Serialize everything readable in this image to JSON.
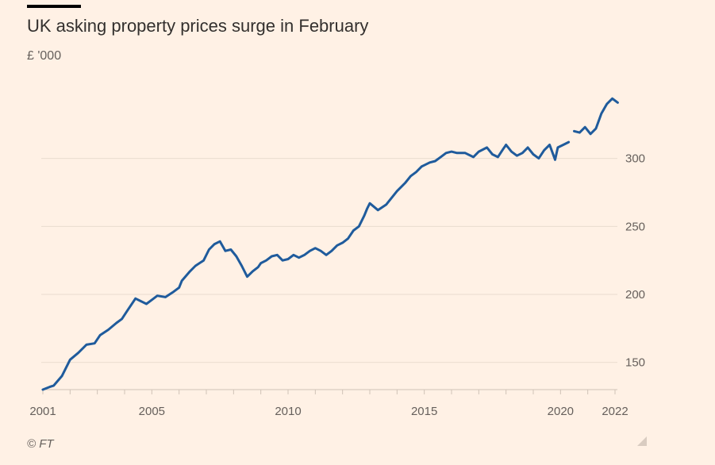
{
  "title": "UK asking property prices surge in February",
  "subtitle": "£ '000",
  "source": "© FT",
  "chart_data": {
    "type": "line",
    "title": "UK asking property prices surge in February",
    "ylabel": "£ '000",
    "xlabel": "",
    "x_ticks": [
      "2001",
      "2005",
      "2010",
      "2015",
      "2020",
      "2022"
    ],
    "y_ticks": [
      150,
      200,
      250,
      300
    ],
    "xlim": [
      2001,
      2022.3
    ],
    "ylim": [
      130,
      350
    ],
    "grid": "horizontal",
    "colors": {
      "line": "#1f5b9c",
      "grid": "#eadccf",
      "background": "#fff1e5"
    },
    "series": [
      {
        "segments": [
          {
            "x": [
              2001.0,
              2001.25,
              2001.4,
              2001.7,
              2002.0,
              2002.3,
              2002.6,
              2002.9,
              2003.1,
              2003.4,
              2003.7,
              2003.9,
              2004.1,
              2004.4,
              2004.6,
              2004.8,
              2005.0,
              2005.2,
              2005.5,
              2005.8,
              2006.0,
              2006.1,
              2006.4,
              2006.6,
              2006.9,
              2007.1,
              2007.3,
              2007.5,
              2007.7,
              2007.9,
              2008.1,
              2008.3,
              2008.5,
              2008.7,
              2008.9,
              2009.0,
              2009.2,
              2009.4,
              2009.6,
              2009.8,
              2010.0,
              2010.2,
              2010.4,
              2010.6,
              2010.8,
              2011.0,
              2011.2,
              2011.4,
              2011.6,
              2011.8,
              2012.0,
              2012.2,
              2012.4,
              2012.6,
              2012.8,
              2012.9,
              2013.0,
              2013.3,
              2013.6,
              2013.8,
              2014.0,
              2014.3,
              2014.5,
              2014.7,
              2014.9,
              2015.0,
              2015.2,
              2015.4,
              2015.6,
              2015.8,
              2016.0,
              2016.2,
              2016.5,
              2016.8,
              2017.0,
              2017.3,
              2017.5,
              2017.7,
              2017.9,
              2018.0,
              2018.2,
              2018.4,
              2018.6,
              2018.8,
              2019.0,
              2019.2,
              2019.4,
              2019.6,
              2019.8,
              2019.9,
              2020.1,
              2020.3
            ],
            "values": [
              130,
              132,
              133,
              140,
              152,
              157,
              163,
              164,
              170,
              174,
              179,
              182,
              188,
              197,
              195,
              193,
              196,
              199,
              198,
              202,
              205,
              210,
              217,
              221,
              225,
              233,
              237,
              239,
              232,
              233,
              228,
              221,
              213,
              217,
              220,
              223,
              225,
              228,
              229,
              225,
              226,
              229,
              227,
              229,
              232,
              234,
              232,
              229,
              232,
              236,
              238,
              241,
              247,
              250,
              258,
              263,
              267,
              262,
              266,
              271,
              276,
              282,
              287,
              290,
              294,
              295,
              297,
              298,
              301,
              304,
              305,
              304,
              304,
              301,
              305,
              308,
              303,
              301,
              307,
              310,
              305,
              302,
              304,
              308,
              303,
              300,
              306,
              310,
              299,
              308,
              310,
              312
            ]
          },
          {
            "x": [
              2020.5,
              2020.7,
              2020.9,
              2021.1,
              2021.3,
              2021.5,
              2021.7,
              2021.9,
              2022.1
            ],
            "values": [
              320,
              319,
              323,
              318,
              322,
              333,
              340,
              344,
              341
            ]
          }
        ]
      }
    ]
  }
}
